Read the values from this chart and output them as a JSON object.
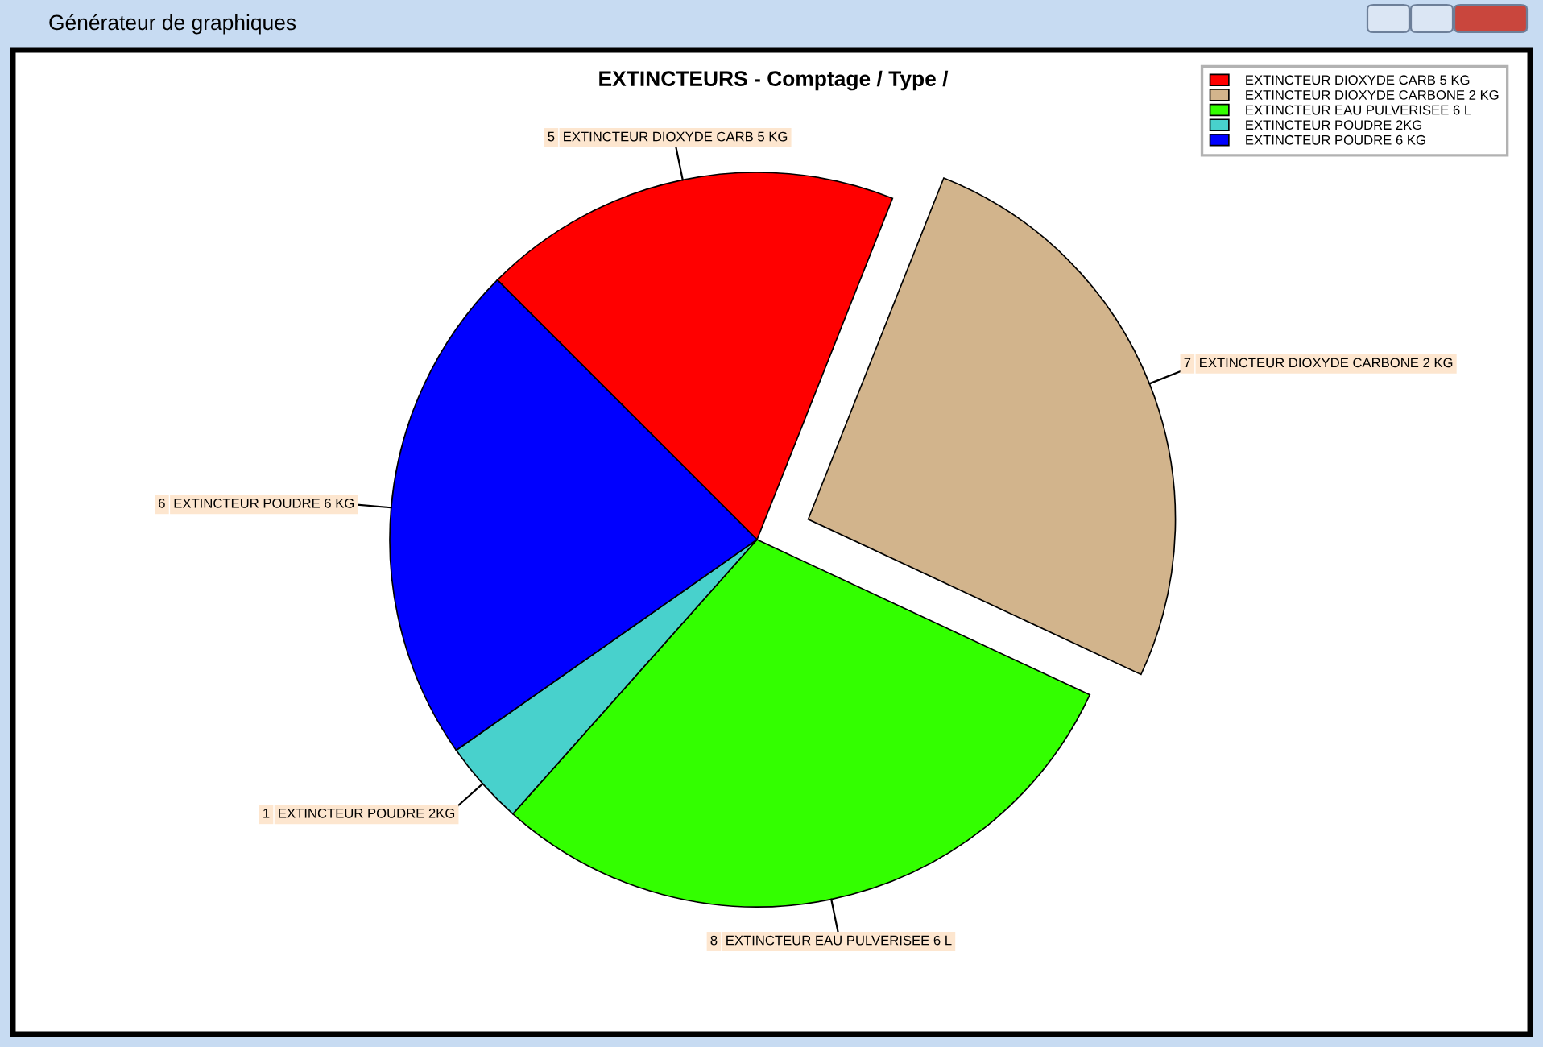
{
  "chart_data": {
    "type": "pie",
    "title": "EXTINCTEURS - Comptage / Type /",
    "categories": [
      "EXTINCTEUR DIOXYDE CARB 5 KG",
      "EXTINCTEUR DIOXYDE CARBONE 2 KG",
      "EXTINCTEUR EAU PULVERISEE 6 L",
      "EXTINCTEUR POUDRE 2KG",
      "EXTINCTEUR POUDRE 6 KG"
    ],
    "values": [
      5,
      7,
      8,
      1,
      6
    ],
    "colors": [
      "#ff0000",
      "#d2b48c",
      "#33ff00",
      "#48d1cc",
      "#0000ff"
    ],
    "data_labels": true,
    "legend": "top right",
    "annotations": [
      "Générateur de graphiques"
    ]
  }
}
